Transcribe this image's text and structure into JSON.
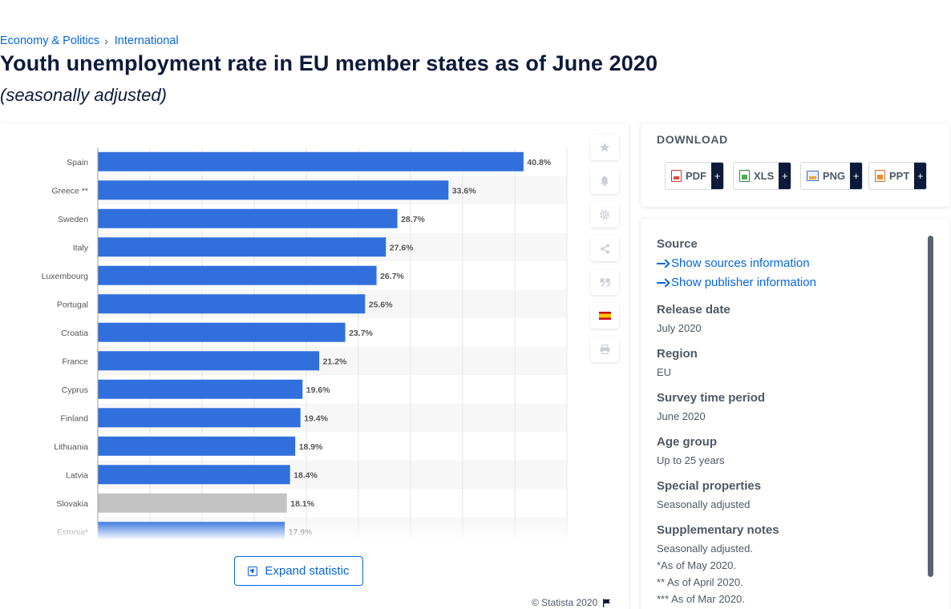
{
  "breadcrumb": {
    "items": [
      "Economy & Politics",
      "International"
    ],
    "separator": "›"
  },
  "title": "Youth unemployment rate in EU member states as of June 2020",
  "subtitle": "(seasonally adjusted)",
  "chart_data": {
    "type": "bar",
    "orientation": "horizontal",
    "categories": [
      "Spain",
      "Greece **",
      "Sweden",
      "Italy",
      "Luxembourg",
      "Portugal",
      "Croatia",
      "France",
      "Cyprus",
      "Finland",
      "Lithuania",
      "Latvia",
      "Slovakia",
      "Estonia*"
    ],
    "values": [
      40.8,
      33.6,
      28.7,
      27.6,
      26.7,
      25.6,
      23.7,
      21.2,
      19.6,
      19.4,
      18.9,
      18.4,
      18.1,
      17.9
    ],
    "value_labels": [
      "40.8%",
      "33.6%",
      "28.7%",
      "27.6%",
      "26.7%",
      "25.6%",
      "23.7%",
      "21.2%",
      "19.6%",
      "19.4%",
      "18.9%",
      "18.4%",
      "18.1%",
      "17.9%"
    ],
    "highlighted": [
      false,
      false,
      false,
      false,
      false,
      false,
      false,
      false,
      false,
      false,
      false,
      false,
      true,
      false
    ],
    "xlim": [
      0,
      45
    ],
    "grid": true,
    "colors": {
      "bar": "#3170dc",
      "highlight": "#c3c3c3",
      "label": "#555555"
    }
  },
  "tools": [
    "star-icon",
    "bell-icon",
    "gear-icon",
    "share-icon",
    "quote-icon",
    "flag-es-icon",
    "print-icon"
  ],
  "expand_label": "Expand statistic",
  "copyright": "© Statista 2020",
  "download": {
    "title": "DOWNLOAD",
    "buttons": [
      {
        "label": "PDF",
        "plus": "+"
      },
      {
        "label": "XLS",
        "plus": "+"
      },
      {
        "label": "PNG",
        "plus": "+"
      },
      {
        "label": "PPT",
        "plus": "+"
      }
    ]
  },
  "info": {
    "source_label": "Source",
    "show_sources": "Show sources information",
    "show_publisher": "Show publisher information",
    "release_label": "Release date",
    "release_value": "July 2020",
    "region_label": "Region",
    "region_value": "EU",
    "survey_label": "Survey time period",
    "survey_value": "June 2020",
    "age_label": "Age group",
    "age_value": "Up to 25 years",
    "special_label": "Special properties",
    "special_value": "Seasonally adjusted",
    "notes_label": "Supplementary notes",
    "notes": [
      "Seasonally adjusted.",
      "*As of May 2020.",
      "** As of April 2020.",
      "*** As of Mar 2020."
    ]
  }
}
